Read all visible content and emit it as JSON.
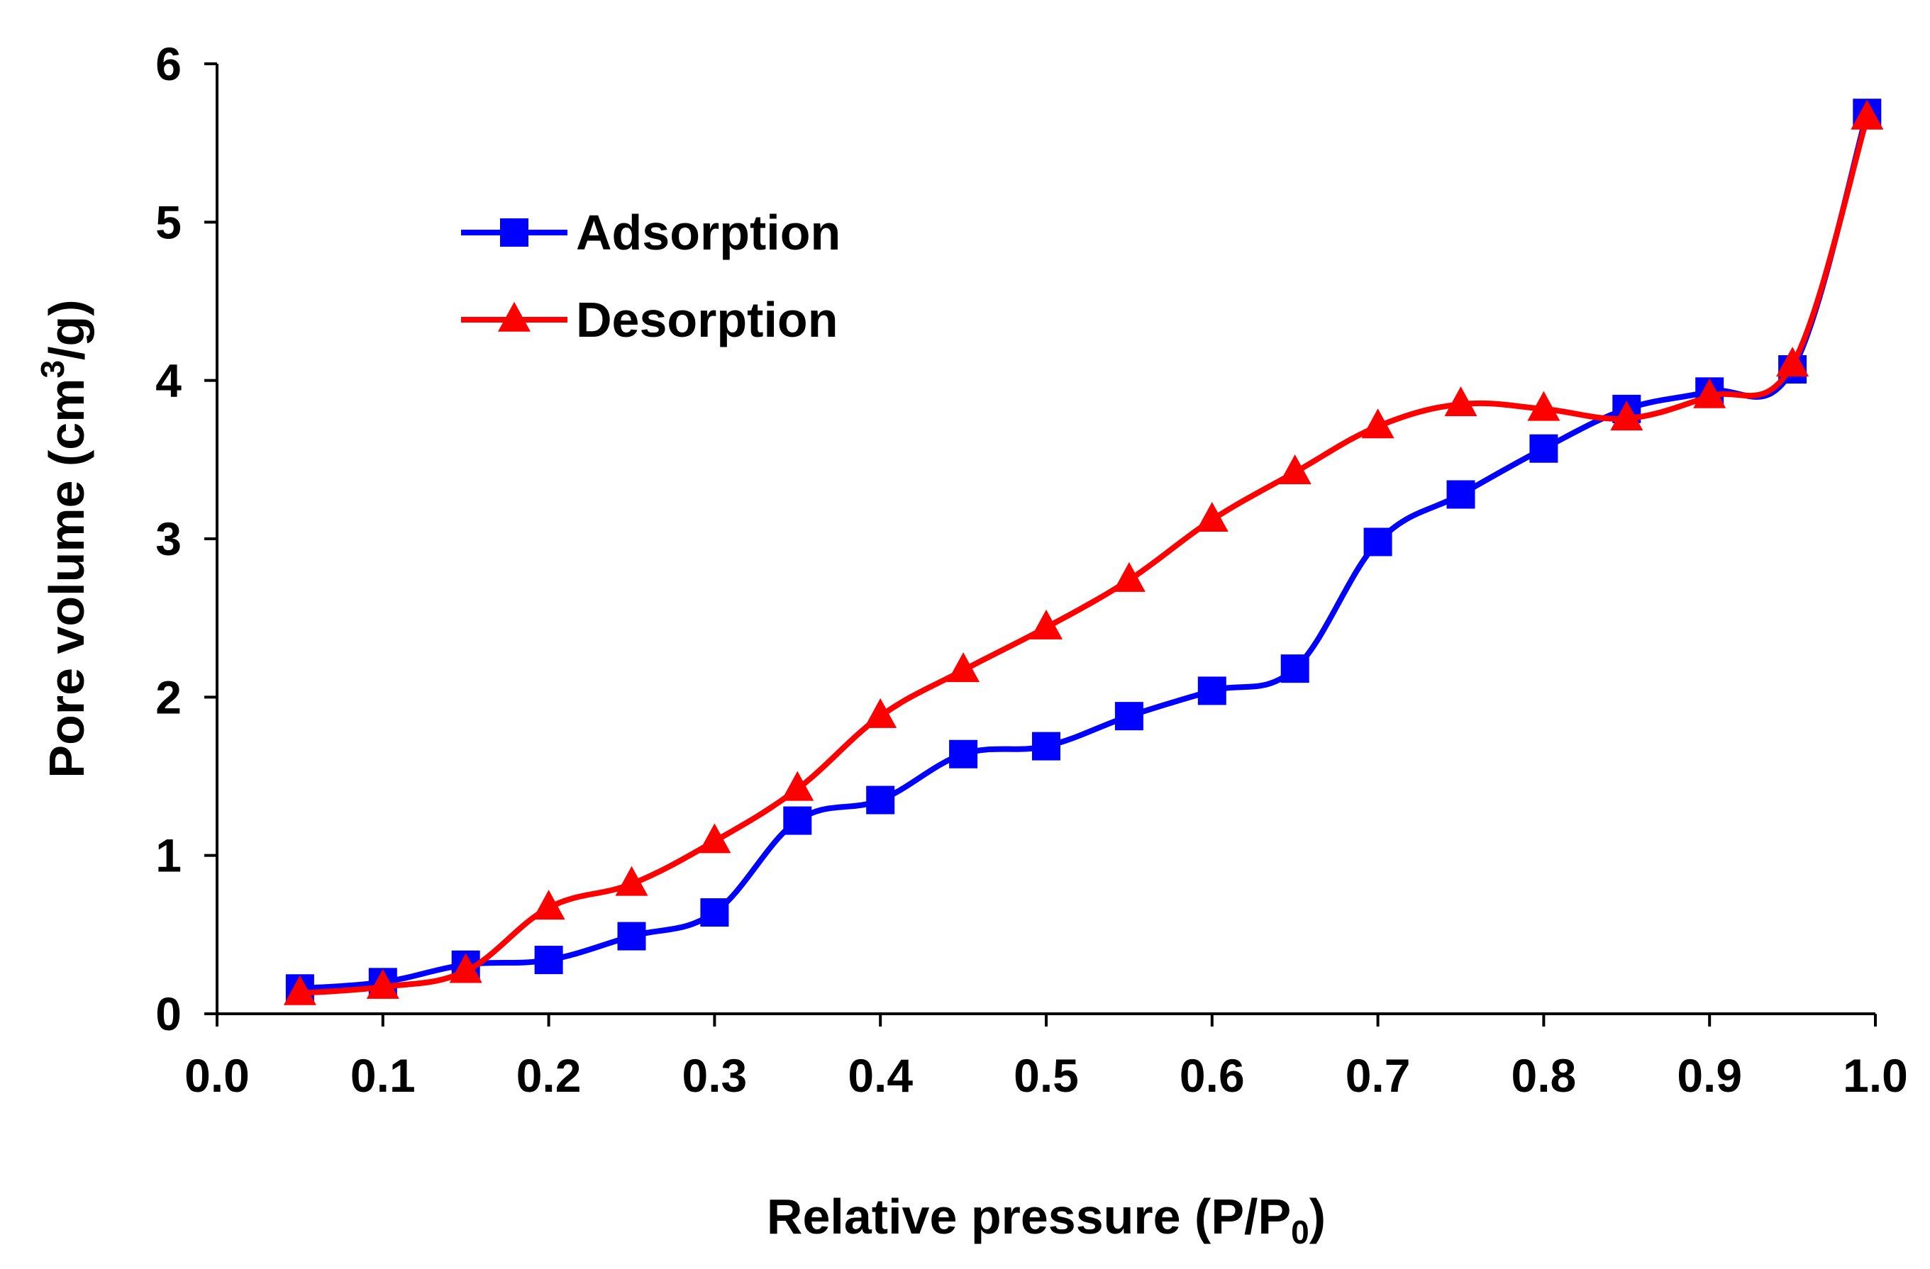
{
  "chart_data": {
    "type": "line",
    "title": "",
    "xlabel": "Relative pressure (P/P0)",
    "xlabel_parts": {
      "main": "Relative pressure (P/P",
      "sub": "0",
      "end": ")"
    },
    "ylabel": "Pore volume (cm3/g)",
    "ylabel_parts": {
      "main": "Pore volume (cm",
      "sup": "3",
      "end": "/g)"
    },
    "xlim": [
      0.0,
      1.0
    ],
    "ylim": [
      0,
      6
    ],
    "xticks": [
      "0.0",
      "0.1",
      "0.2",
      "0.3",
      "0.4",
      "0.5",
      "0.6",
      "0.7",
      "0.8",
      "0.9",
      "1.0"
    ],
    "yticks": [
      "0",
      "1",
      "2",
      "3",
      "4",
      "5",
      "6"
    ],
    "grid": false,
    "legend_position": "top-left",
    "series": [
      {
        "name": "Adsorption",
        "color": "#0000FF",
        "marker": "square",
        "x": [
          0.05,
          0.1,
          0.15,
          0.2,
          0.25,
          0.3,
          0.35,
          0.4,
          0.45,
          0.5,
          0.55,
          0.6,
          0.65,
          0.7,
          0.75,
          0.8,
          0.85,
          0.9,
          0.95,
          0.995
        ],
        "y": [
          0.16,
          0.2,
          0.31,
          0.34,
          0.49,
          0.64,
          1.22,
          1.35,
          1.64,
          1.69,
          1.88,
          2.04,
          2.18,
          2.98,
          3.28,
          3.57,
          3.82,
          3.93,
          4.07,
          5.69
        ]
      },
      {
        "name": "Desorption",
        "color": "#FF0000",
        "marker": "triangle",
        "x": [
          0.05,
          0.1,
          0.15,
          0.2,
          0.25,
          0.3,
          0.35,
          0.4,
          0.45,
          0.5,
          0.55,
          0.6,
          0.65,
          0.7,
          0.75,
          0.8,
          0.85,
          0.9,
          0.95,
          0.995
        ],
        "y": [
          0.13,
          0.17,
          0.27,
          0.67,
          0.82,
          1.09,
          1.42,
          1.88,
          2.17,
          2.44,
          2.74,
          3.12,
          3.42,
          3.71,
          3.85,
          3.82,
          3.76,
          3.9,
          4.1,
          5.66
        ]
      }
    ]
  }
}
